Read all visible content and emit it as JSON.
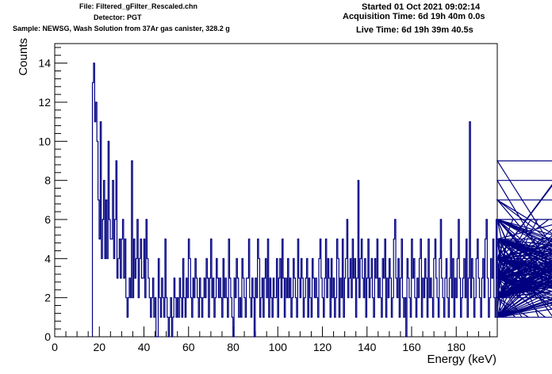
{
  "header": {
    "file": "File: Filtered_gFilter_Rescaled.chn",
    "detector": "Detector: PGT",
    "sample": "Sample: NEWSG, Wash Solution from 37Ar gas canister, 328.2 g",
    "started": "Started 01 Oct 2021 09:02:14",
    "acquisition": "Acquisition Time: 6d 19h 40m 0.0s",
    "live": "Live Time: 6d 19h 39m 40.5s"
  },
  "colors": {
    "line": "#000080",
    "axis": "#000000"
  },
  "chart_data": {
    "type": "line",
    "style": "histogram-step",
    "xlabel": "Energy (keV)",
    "ylabel": "Counts",
    "xlim": [
      0,
      198.4
    ],
    "ylim": [
      0,
      15
    ],
    "xticks": [
      0,
      20,
      40,
      60,
      80,
      100,
      120,
      140,
      160,
      180
    ],
    "yticks": [
      0,
      2,
      4,
      6,
      8,
      10,
      12,
      14
    ],
    "x_start": 16.9,
    "bin_width": 0.5,
    "series": [
      {
        "values": [
          13,
          14,
          11,
          12,
          10,
          7,
          5,
          11,
          4,
          6,
          8,
          4,
          7,
          4,
          10,
          6,
          5,
          5,
          8,
          4,
          6,
          9,
          3,
          4,
          5,
          3,
          5,
          6,
          3,
          5,
          2,
          1,
          2,
          3,
          2,
          9,
          2,
          5,
          3,
          4,
          6,
          2,
          4,
          5,
          3,
          3,
          5,
          2,
          6,
          4,
          3,
          2,
          1,
          2,
          3,
          1,
          2,
          0,
          0,
          4,
          2,
          1,
          3,
          2,
          1,
          5,
          2,
          1,
          0,
          1,
          2,
          0,
          1,
          3,
          2,
          1,
          2,
          1,
          3,
          2,
          1,
          4,
          2,
          1,
          3,
          2,
          5,
          4,
          2,
          1,
          3,
          2,
          4,
          3,
          2,
          1,
          3,
          2,
          1,
          2,
          3,
          2,
          4,
          3,
          1,
          3,
          5,
          2,
          3,
          1,
          2,
          4,
          3,
          2,
          3,
          2,
          1,
          4,
          2,
          3,
          2,
          1,
          5,
          3,
          2,
          1,
          0,
          3,
          2,
          4,
          3,
          1,
          2,
          1,
          4,
          3,
          2,
          1,
          3,
          3,
          5,
          2,
          1,
          3,
          2,
          0,
          3,
          2,
          5,
          4,
          1,
          2,
          3,
          1,
          3,
          4,
          2,
          5,
          1,
          3,
          2,
          1,
          3,
          2,
          2,
          4,
          1,
          3,
          4,
          2,
          5,
          3,
          1,
          3,
          2,
          4,
          2,
          3,
          1,
          2,
          4,
          3,
          2,
          1,
          5,
          3,
          2,
          4,
          3,
          1,
          2,
          3,
          4,
          1,
          3,
          2,
          1,
          4,
          3,
          2,
          3,
          2,
          1,
          4,
          5,
          3,
          2,
          1,
          3,
          5,
          2,
          4,
          3,
          1,
          4,
          2,
          3,
          1,
          2,
          5,
          4,
          1,
          3,
          2,
          5,
          1,
          3,
          4,
          6,
          2,
          3,
          4,
          2,
          5,
          3,
          4,
          1,
          3,
          8,
          2,
          4,
          5,
          3,
          2,
          4,
          1,
          3,
          5,
          2,
          3,
          4,
          2,
          1,
          4,
          3,
          5,
          2,
          3,
          2,
          1,
          4,
          3,
          5,
          1,
          3,
          2,
          4,
          3,
          1,
          2,
          5,
          6,
          3,
          2,
          4,
          1,
          3,
          5,
          2,
          1,
          2,
          0,
          4,
          3,
          2,
          1,
          5,
          3,
          4,
          2,
          1,
          3,
          2,
          4,
          5,
          1,
          3,
          2,
          4,
          3,
          1,
          5,
          2,
          3,
          2,
          1,
          4,
          5,
          3,
          2,
          1,
          4,
          6,
          3,
          2,
          1,
          3,
          4,
          2,
          1,
          3,
          5,
          2,
          4,
          1,
          3,
          2,
          4,
          6,
          3,
          1,
          2,
          3,
          4,
          2,
          5,
          1,
          3,
          11,
          2,
          4,
          3,
          1,
          2,
          4,
          5,
          3,
          2,
          1,
          3,
          4,
          2,
          5,
          6,
          3,
          1,
          2,
          4,
          3,
          5,
          2,
          1,
          6,
          3,
          2,
          4,
          1,
          5,
          3,
          2,
          4,
          1,
          3,
          5,
          2,
          3,
          4,
          6,
          2,
          1,
          3,
          5,
          2,
          4,
          3,
          1,
          2,
          3,
          5,
          4,
          2,
          1,
          3,
          6,
          2,
          4,
          3,
          5,
          2,
          6,
          1,
          3,
          4,
          2,
          5,
          3,
          1,
          2,
          4,
          6,
          3,
          2,
          5,
          1,
          4,
          8,
          3,
          2,
          5,
          4,
          1,
          3,
          6,
          2,
          4,
          3,
          5,
          2,
          4,
          9,
          3,
          6,
          2,
          4,
          5,
          3,
          1,
          7,
          2,
          4,
          3,
          5,
          1,
          2,
          4,
          3,
          6,
          2,
          5,
          3,
          1,
          4,
          2,
          5,
          3,
          2,
          4,
          6,
          3,
          1,
          5,
          2,
          4,
          3,
          2,
          5,
          1,
          3,
          4,
          2,
          6,
          3,
          5,
          2,
          4,
          1,
          3,
          5,
          2,
          4,
          3,
          1,
          2,
          4,
          5,
          3,
          2,
          6,
          4,
          1,
          3,
          5,
          2,
          4,
          6,
          3,
          2,
          5,
          7,
          1,
          3,
          4,
          2,
          5,
          3,
          7,
          2,
          4,
          6,
          3,
          1,
          5,
          2,
          3,
          5,
          4,
          1,
          6,
          2,
          3,
          5,
          4,
          2,
          3,
          5,
          2,
          4,
          3,
          2,
          5,
          3,
          4,
          2,
          5,
          3,
          2,
          4,
          5,
          3,
          2
        ]
      }
    ]
  }
}
